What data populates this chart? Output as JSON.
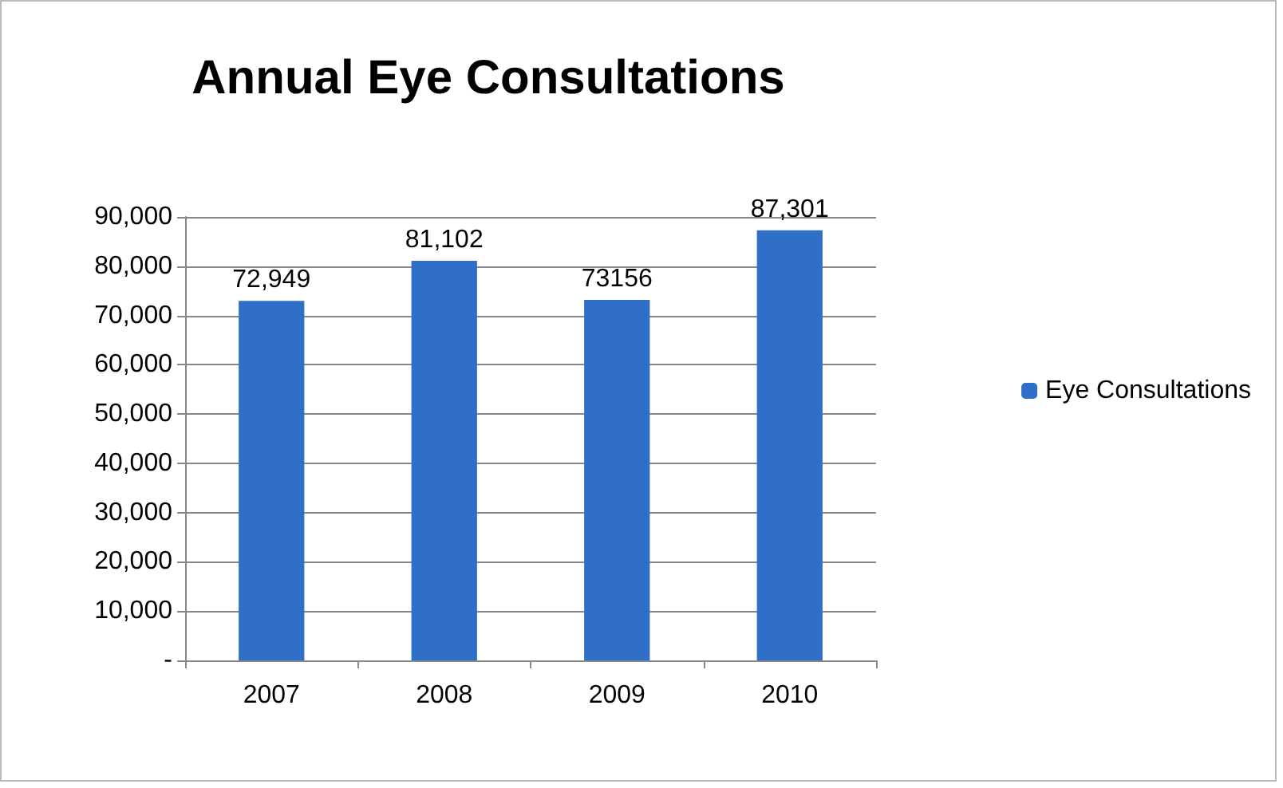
{
  "chart_data": {
    "type": "bar",
    "title": "Annual Eye Consultations",
    "categories": [
      "2007",
      "2008",
      "2009",
      "2010"
    ],
    "series": [
      {
        "name": "Eye Consultations",
        "color": "#2f6fc8",
        "values": [
          72949,
          81102,
          73156,
          87301
        ],
        "value_labels": [
          "72,949",
          "81,102",
          "73156",
          "87,301"
        ]
      }
    ],
    "ylim": [
      0,
      90000
    ],
    "yticks": [
      {
        "value": 0,
        "label": "-"
      },
      {
        "value": 10000,
        "label": "10,000"
      },
      {
        "value": 20000,
        "label": "20,000"
      },
      {
        "value": 30000,
        "label": "30,000"
      },
      {
        "value": 40000,
        "label": "40,000"
      },
      {
        "value": 50000,
        "label": "50,000"
      },
      {
        "value": 60000,
        "label": "60,000"
      },
      {
        "value": 70000,
        "label": "70,000"
      },
      {
        "value": 80000,
        "label": "80,000"
      },
      {
        "value": 90000,
        "label": "90,000"
      }
    ],
    "grid": "y",
    "legend": "right"
  }
}
